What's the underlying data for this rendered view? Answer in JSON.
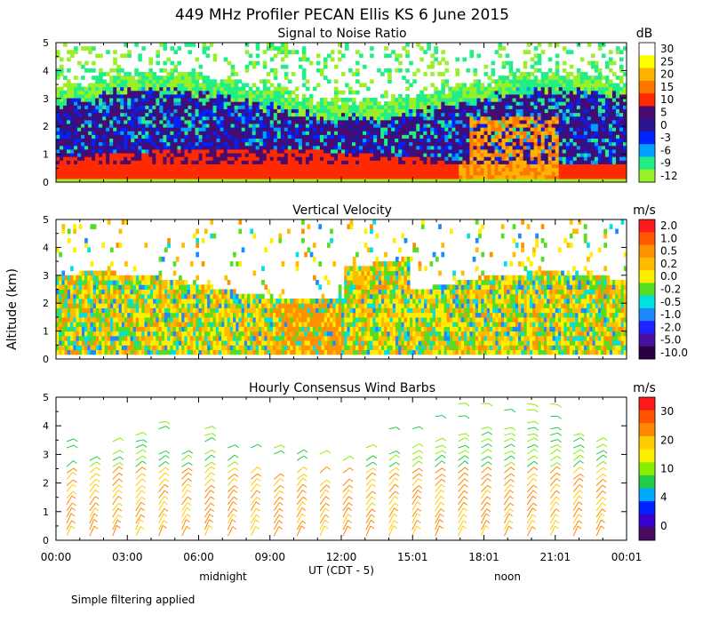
{
  "chart_data": {
    "type": "heatmap",
    "title": "449 MHz Profiler PECAN Ellis KS  6 June 2015",
    "ylabel": "Altitude (km)",
    "xlabel": "UT  (CDT - 5)",
    "x_ticks": [
      "00:00",
      "03:00",
      "06:00",
      "09:00",
      "12:00",
      "15:01",
      "18:01",
      "21:01",
      "00:01"
    ],
    "y_ticks": [
      "0",
      "1",
      "2",
      "3",
      "4",
      "5"
    ],
    "ylim": [
      0,
      5
    ],
    "local_time_labels": [
      "midnight",
      "noon"
    ],
    "panels": [
      {
        "title": "Signal to Noise Ratio",
        "units": "dB",
        "colorbar_labels": [
          "30",
          "25",
          "20",
          "15",
          "10",
          "5",
          "0",
          "-3",
          "-6",
          "-9",
          "-12"
        ],
        "colors": [
          "#ffffff",
          "#ffff00",
          "#ffb300",
          "#ff7700",
          "#ff2a00",
          "#4a0a70",
          "#2a1490",
          "#0022ff",
          "#00a0ff",
          "#22ee88",
          "#9af028"
        ],
        "approx_layers": [
          {
            "range_km": [
              0,
              1
            ],
            "level_dB": "10 to 20"
          },
          {
            "range_km": [
              1,
              3
            ],
            "level_dB": "-3 to 5"
          },
          {
            "range_km": [
              3,
              5
            ],
            "level_dB": "-12 to -9 (sparse)"
          }
        ]
      },
      {
        "title": "Vertical Velocity",
        "units": "m/s",
        "colorbar_labels": [
          "2.0",
          "1.0",
          "0.5",
          "0.2",
          "0.0",
          "-0.2",
          "-0.5",
          "-1.0",
          "-2.0",
          "-5.0",
          "-10.0"
        ],
        "colors": [
          "#ff1a1a",
          "#ff5a00",
          "#ff9000",
          "#ffbb00",
          "#ffee00",
          "#55dd22",
          "#00e0e0",
          "#1e88ff",
          "#2222ff",
          "#4a10a0",
          "#2a0040"
        ],
        "approx_range_m_s": [
          -1.0,
          1.0
        ]
      },
      {
        "title": "Hourly Consensus Wind Barbs",
        "units": "m/s",
        "colorbar_labels": [
          "30",
          "20",
          "10",
          "4",
          "0"
        ],
        "colors": [
          "#ff1a1a",
          "#ff5500",
          "#ff8800",
          "#ffcc00",
          "#ffee00",
          "#88ee00",
          "#22cc44",
          "#00aaff",
          "#0022ff",
          "#3a00cc",
          "#4a0a60"
        ],
        "approx_speed_range_m_s": [
          5,
          25
        ]
      }
    ]
  },
  "footer_note": "Simple filtering applied"
}
